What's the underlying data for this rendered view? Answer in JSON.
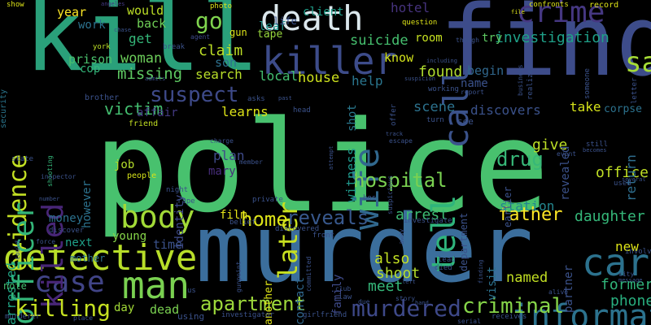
{
  "palette": {
    "purple": "#440154",
    "indigo": "#3b528b",
    "blue": "#2c728e",
    "teal": "#21918c",
    "green": "#27ad81",
    "lime": "#5ec962",
    "yellow": "#bddf26"
  },
  "words": [
    {
      "text": "police",
      "color": "#48c16e"
    },
    {
      "text": "murder",
      "color": "#3b6e9c"
    },
    {
      "text": "find",
      "color": "#3d4c8a"
    },
    {
      "text": "kill",
      "color": "#2aa07a"
    },
    {
      "text": "killer",
      "color": "#3d4c8a"
    },
    {
      "text": "death",
      "color": "#dbe7ec"
    },
    {
      "text": "crime",
      "color": "#453781"
    },
    {
      "text": "call",
      "color": "#3b528b"
    },
    {
      "text": "detective",
      "color": "#b8de29"
    },
    {
      "text": "case",
      "color": "#414487"
    },
    {
      "text": "man",
      "color": "#7ad151"
    },
    {
      "text": "car",
      "color": "#2c728e"
    },
    {
      "text": "body",
      "color": "#a2da37"
    },
    {
      "text": "evidence",
      "color": "#c2df23"
    },
    {
      "text": "officer",
      "color": "#34b679"
    },
    {
      "text": "killed",
      "color": "#482677"
    },
    {
      "text": "later",
      "color": "#c8e020"
    },
    {
      "text": "wife",
      "color": "#31688e"
    },
    {
      "text": "tell",
      "color": "#2fb47c"
    },
    {
      "text": "information",
      "color": "#2c728e"
    },
    {
      "text": "say",
      "color": "#a5db36"
    },
    {
      "text": "suspect",
      "color": "#3e4a89"
    },
    {
      "text": "go",
      "color": "#7fd34e"
    },
    {
      "text": "killing",
      "color": "#c5e021"
    },
    {
      "text": "apartment",
      "color": "#9dd93b"
    },
    {
      "text": "criminal",
      "color": "#86d549"
    },
    {
      "text": "murdered",
      "color": "#3e4989"
    },
    {
      "text": "reveals",
      "color": "#38588c"
    },
    {
      "text": "home",
      "color": "#dde318"
    },
    {
      "text": "father",
      "color": "#fde725"
    },
    {
      "text": "drug",
      "color": "#37b878"
    },
    {
      "text": "hospital",
      "color": "#7ad151"
    },
    {
      "text": "office",
      "color": "#c0df25"
    },
    {
      "text": "investigation",
      "color": "#1fa088"
    },
    {
      "text": "victim",
      "color": "#44bf70"
    },
    {
      "text": "woman",
      "color": "#6ccd5a"
    },
    {
      "text": "missing",
      "color": "#5ec962"
    },
    {
      "text": "arrest",
      "color": "#3dbc74"
    },
    {
      "text": "daughter",
      "color": "#35b779"
    },
    {
      "text": "shoot",
      "color": "#b5de2b"
    },
    {
      "text": "also",
      "color": "#c2df23"
    },
    {
      "text": "meet",
      "color": "#35b779"
    },
    {
      "text": "phone",
      "color": "#29af7f"
    },
    {
      "text": "former",
      "color": "#31b57b"
    },
    {
      "text": "arrested",
      "color": "#21a685"
    },
    {
      "text": "house",
      "color": "#cde11d"
    },
    {
      "text": "found",
      "color": "#b0dd2f"
    },
    {
      "text": "help",
      "color": "#2a768e"
    },
    {
      "text": "suicide",
      "color": "#46c06f"
    },
    {
      "text": "claim",
      "color": "#bddf26"
    },
    {
      "text": "search",
      "color": "#b8de29"
    },
    {
      "text": "son",
      "color": "#2d718e"
    },
    {
      "text": "prison",
      "color": "#4ac16d"
    },
    {
      "text": "cop",
      "color": "#34b679"
    },
    {
      "text": "get",
      "color": "#35b779"
    },
    {
      "text": "back",
      "color": "#70cf57"
    },
    {
      "text": "would",
      "color": "#bddf26"
    },
    {
      "text": "year",
      "color": "#fde725"
    },
    {
      "text": "work",
      "color": "#2c728e"
    },
    {
      "text": "leaf",
      "color": "#1f948c"
    },
    {
      "text": "client",
      "color": "#1f9e89"
    },
    {
      "text": "life",
      "color": "#3b528b"
    },
    {
      "text": "tape",
      "color": "#98d83e"
    },
    {
      "text": "local",
      "color": "#44bf70"
    },
    {
      "text": "hotel",
      "color": "#46337e"
    },
    {
      "text": "room",
      "color": "#c5e021"
    },
    {
      "text": "know",
      "color": "#d2e21b"
    },
    {
      "text": "begin",
      "color": "#31688e"
    },
    {
      "text": "name",
      "color": "#3b528b"
    },
    {
      "text": "try",
      "color": "#5ec962"
    },
    {
      "text": "take",
      "color": "#d5e21a"
    },
    {
      "text": "scene",
      "color": "#2c728e"
    },
    {
      "text": "discovers",
      "color": "#3b528b"
    },
    {
      "text": "affair",
      "color": "#443a83"
    },
    {
      "text": "learns",
      "color": "#dde318"
    },
    {
      "text": "witness",
      "color": "#1f978b"
    },
    {
      "text": "shot",
      "color": "#2a788e"
    },
    {
      "text": "give",
      "color": "#bddf26"
    },
    {
      "text": "station",
      "color": "#24868e"
    },
    {
      "text": "visit",
      "color": "#2c728e"
    },
    {
      "text": "new",
      "color": "#dde318"
    },
    {
      "text": "named",
      "color": "#c2df23"
    },
    {
      "text": "revealed",
      "color": "#3b528b"
    },
    {
      "text": "partner",
      "color": "#3b528b"
    },
    {
      "text": "return",
      "color": "#2e6e8e"
    },
    {
      "text": "corpse",
      "color": "#2c728e"
    },
    {
      "text": "identity",
      "color": "#3e4a89"
    },
    {
      "text": "however",
      "color": "#2c728e"
    },
    {
      "text": "plan",
      "color": "#3e4a89"
    },
    {
      "text": "mary",
      "color": "#472d7b"
    },
    {
      "text": "job",
      "color": "#b5de2b"
    },
    {
      "text": "film",
      "color": "#e5e419"
    },
    {
      "text": "money",
      "color": "#2c728e"
    },
    {
      "text": "time",
      "color": "#3b528b"
    },
    {
      "text": "young",
      "color": "#86d549"
    },
    {
      "text": "next",
      "color": "#1fa188"
    },
    {
      "text": "mother",
      "color": "#2c728e"
    },
    {
      "text": "day",
      "color": "#a2da37"
    },
    {
      "text": "dead",
      "color": "#7ad151"
    },
    {
      "text": "note",
      "color": "#44bf70"
    },
    {
      "text": "using",
      "color": "#3b528b"
    },
    {
      "text": "contact",
      "color": "#31688e"
    },
    {
      "text": "family",
      "color": "#3e4a89"
    },
    {
      "text": "another",
      "color": "#dde318"
    },
    {
      "text": "department",
      "color": "#3b528b"
    },
    {
      "text": "earlier",
      "color": "#3b528b"
    },
    {
      "text": "friend",
      "color": "#c2df23"
    },
    {
      "text": "people",
      "color": "#d5e21a"
    },
    {
      "text": "gun",
      "color": "#dde318"
    },
    {
      "text": "photo",
      "color": "#dde318"
    },
    {
      "text": "agent",
      "color": "#3e4a89"
    },
    {
      "text": "break",
      "color": "#3b528b"
    },
    {
      "text": "show",
      "color": "#dde318"
    },
    {
      "text": "angeles",
      "color": "#443983"
    },
    {
      "text": "chase",
      "color": "#3b528b"
    },
    {
      "text": "york",
      "color": "#bddf26"
    },
    {
      "text": "security",
      "color": "#2a768e"
    },
    {
      "text": "shooting",
      "color": "#34b679"
    },
    {
      "text": "question",
      "color": "#dde318"
    },
    {
      "text": "record",
      "color": "#dde318"
    },
    {
      "text": "confronts",
      "color": "#dde318"
    },
    {
      "text": "file",
      "color": "#dde318"
    },
    {
      "text": "brother",
      "color": "#3b528b"
    },
    {
      "text": "admits",
      "color": "#3b528b"
    },
    {
      "text": "asks",
      "color": "#3b528b"
    },
    {
      "text": "head",
      "color": "#3b528b"
    },
    {
      "text": "past",
      "color": "#3b528b"
    },
    {
      "text": "turn",
      "color": "#3b528b"
    },
    {
      "text": "see",
      "color": "#3b528b"
    },
    {
      "text": "report",
      "color": "#3b528b"
    },
    {
      "text": "though",
      "color": "#3b528b"
    },
    {
      "text": "including",
      "color": "#3b528b"
    },
    {
      "text": "suspicion",
      "color": "#3b528b"
    },
    {
      "text": "business",
      "color": "#3b528b"
    },
    {
      "text": "realizes",
      "color": "#3b528b"
    },
    {
      "text": "someone",
      "color": "#3b528b"
    },
    {
      "text": "letter",
      "color": "#3b528b"
    },
    {
      "text": "state",
      "color": "#3b528b"
    },
    {
      "text": "inspector",
      "color": "#3b528b"
    },
    {
      "text": "charge",
      "color": "#3b528b"
    },
    {
      "text": "member",
      "color": "#3b528b"
    },
    {
      "text": "night",
      "color": "#3b528b"
    },
    {
      "text": "rape",
      "color": "#3b528b"
    },
    {
      "text": "private",
      "color": "#3b528b"
    },
    {
      "text": "bos",
      "color": "#3b528b"
    },
    {
      "text": "belief",
      "color": "#3b528b"
    },
    {
      "text": "discovered",
      "color": "#3b528b"
    },
    {
      "text": "front",
      "color": "#3b528b"
    },
    {
      "text": "investigate",
      "color": "#3b528b"
    },
    {
      "text": "force",
      "color": "#3b528b"
    },
    {
      "text": "discover",
      "color": "#3b528b"
    },
    {
      "text": "number",
      "color": "#3b528b"
    },
    {
      "text": "could",
      "color": "#3b528b"
    },
    {
      "text": "gunpoint",
      "color": "#3b528b"
    },
    {
      "text": "committed",
      "color": "#3b528b"
    },
    {
      "text": "investigator",
      "color": "#3b528b"
    },
    {
      "text": "girlfriend",
      "color": "#3b528b"
    },
    {
      "text": "murderer",
      "color": "#3b528b"
    },
    {
      "text": "place",
      "color": "#3b528b"
    },
    {
      "text": "law",
      "color": "#3b528b"
    },
    {
      "text": "due",
      "color": "#3b528b"
    },
    {
      "text": "story",
      "color": "#3b528b"
    },
    {
      "text": "hand",
      "color": "#3b528b"
    },
    {
      "text": "lead",
      "color": "#3b528b"
    },
    {
      "text": "died",
      "color": "#3b528b"
    },
    {
      "text": "serial",
      "color": "#3b528b"
    },
    {
      "text": "receives",
      "color": "#3b528b"
    },
    {
      "text": "alive",
      "color": "#3b528b"
    },
    {
      "text": "involved",
      "color": "#3b528b"
    },
    {
      "text": "used",
      "color": "#3b528b"
    },
    {
      "text": "several",
      "color": "#3b528b"
    },
    {
      "text": "event",
      "color": "#3b528b"
    },
    {
      "text": "still",
      "color": "#3b528b"
    },
    {
      "text": "becomes",
      "color": "#3b528b"
    },
    {
      "text": "suspicious",
      "color": "#3b528b"
    },
    {
      "text": "escape",
      "color": "#3b528b"
    },
    {
      "text": "track",
      "color": "#3b528b"
    },
    {
      "text": "attempt",
      "color": "#3b528b"
    },
    {
      "text": "working",
      "color": "#3b528b"
    },
    {
      "text": "club",
      "color": "#3b528b"
    },
    {
      "text": "left",
      "color": "#3b528b"
    },
    {
      "text": "offer",
      "color": "#3b528b"
    },
    {
      "text": "away",
      "color": "#3b528b"
    },
    {
      "text": "finding",
      "color": "#3b528b"
    },
    {
      "text": "message",
      "color": "#3b528b"
    },
    {
      "text": "city",
      "color": "#3b528b"
    },
    {
      "text": "us",
      "color": "#3b528b"
    }
  ]
}
